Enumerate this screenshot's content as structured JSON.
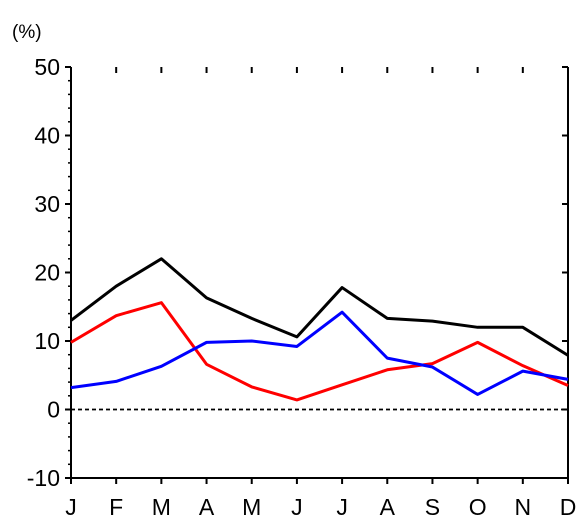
{
  "chart_data": {
    "type": "line",
    "unit_label": "(%)",
    "categories": [
      "J",
      "F",
      "M",
      "A",
      "M",
      "J",
      "J",
      "A",
      "S",
      "O",
      "N",
      "D"
    ],
    "ylim": [
      -10,
      50
    ],
    "yticks": [
      -10,
      0,
      10,
      20,
      30,
      40,
      50
    ],
    "grid": false,
    "zero_line": "dashed",
    "series": [
      {
        "color": "#000000",
        "values": [
          13.0,
          18.0,
          22.0,
          16.3,
          13.3,
          10.6,
          17.8,
          13.3,
          12.9,
          12.0,
          12.0,
          7.9
        ]
      },
      {
        "color": "#ff0000",
        "values": [
          9.8,
          13.7,
          15.6,
          6.6,
          3.3,
          1.4,
          3.6,
          5.8,
          6.7,
          9.8,
          6.4,
          3.5
        ]
      },
      {
        "color": "#0000ff",
        "values": [
          3.2,
          4.1,
          6.3,
          9.8,
          10.0,
          9.2,
          14.2,
          7.5,
          6.2,
          2.2,
          5.6,
          4.4
        ]
      }
    ]
  }
}
